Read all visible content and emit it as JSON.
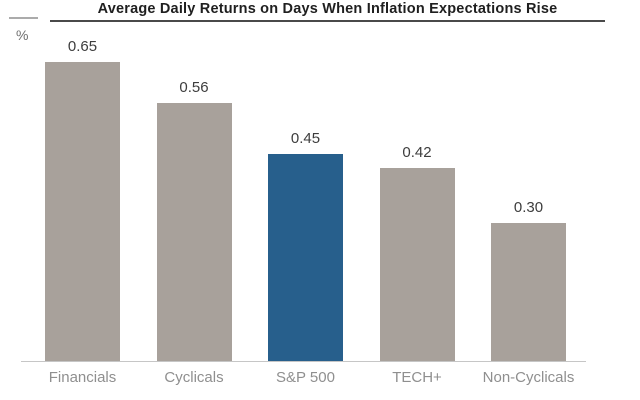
{
  "chart_data": {
    "type": "bar",
    "title": "Average Daily Returns on Days When Inflation Expectations Rise",
    "ylabel": "%",
    "xlabel": "",
    "categories": [
      "Financials",
      "Cyclicals",
      "S&P 500",
      "TECH+",
      "Non-Cyclicals"
    ],
    "values": [
      0.65,
      0.56,
      0.45,
      0.42,
      0.3
    ],
    "value_labels": [
      "0.65",
      "0.56",
      "0.45",
      "0.42",
      "0.30"
    ],
    "highlighted_category": "S&P 500",
    "highlight_index": 2,
    "ylim": [
      0,
      0.7
    ],
    "grid": false,
    "legend": null,
    "colors": {
      "bar_default": "#a8a19b",
      "bar_highlight": "#275f8c",
      "value_label_text": "#3d3d3d",
      "category_label_text": "#8f8f8f",
      "title_text": "#1f1f1f",
      "axis_line": "#c6c6c6",
      "title_rule": "#4a4a4a"
    }
  }
}
